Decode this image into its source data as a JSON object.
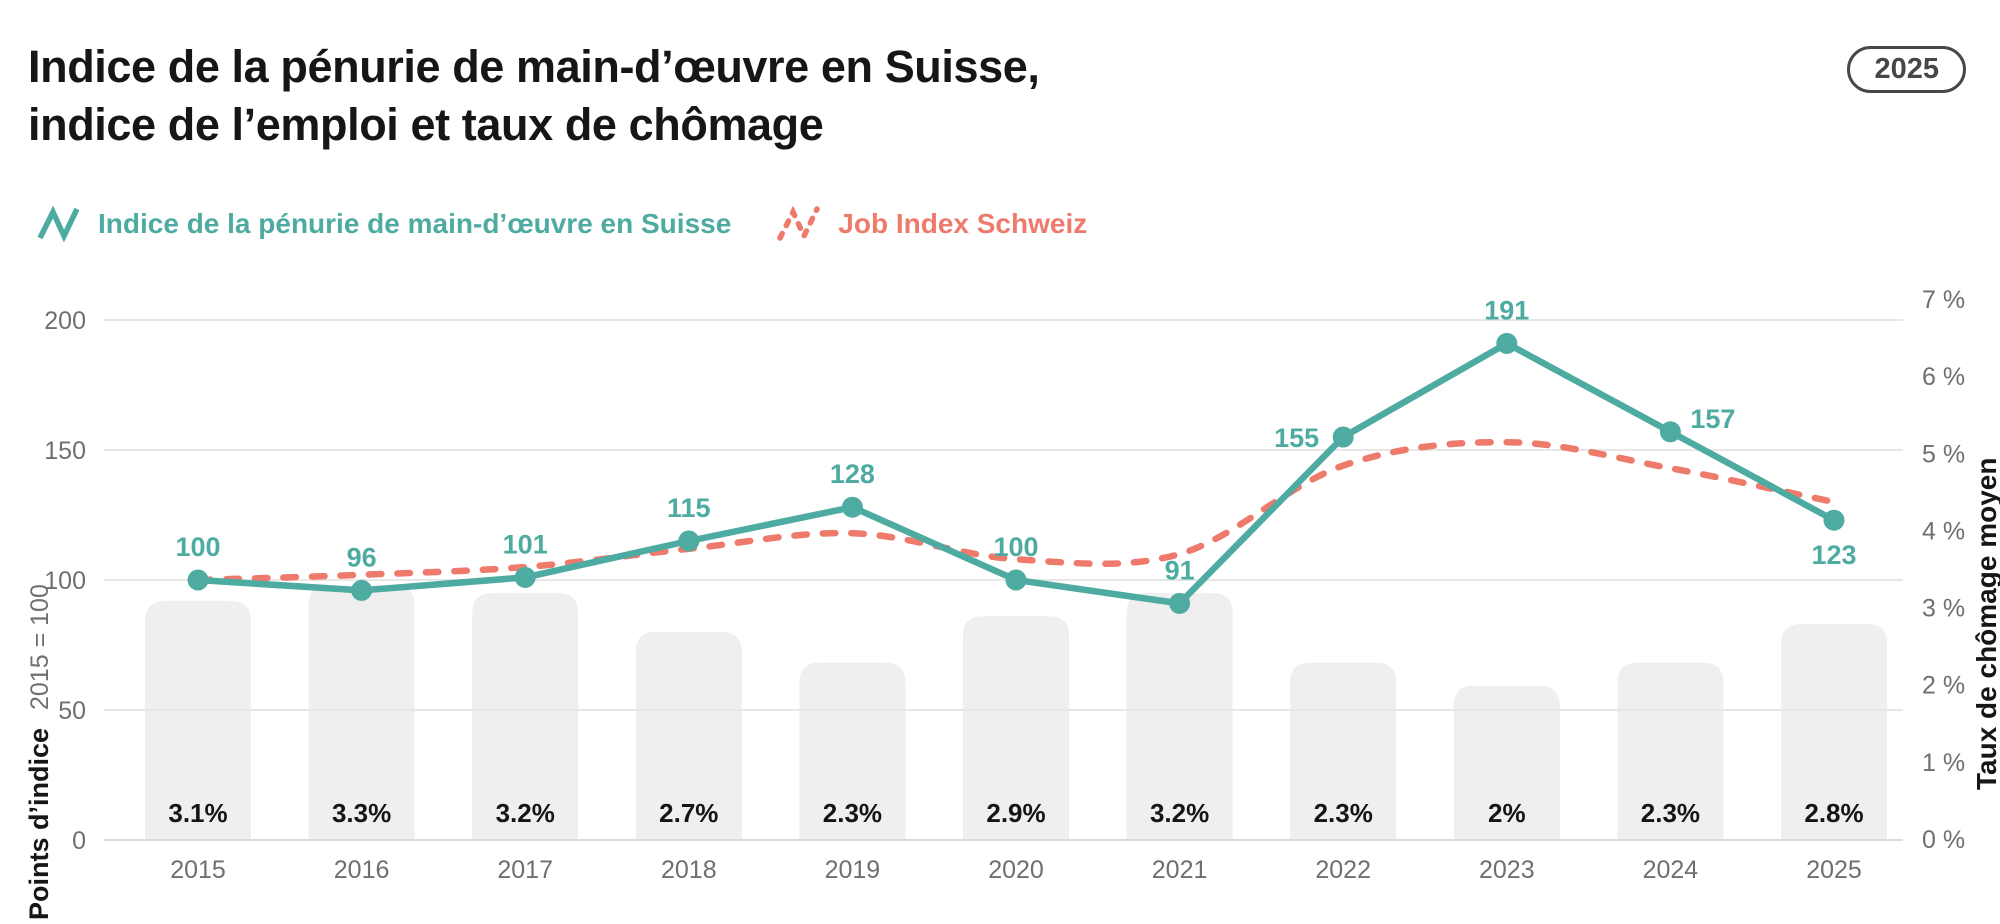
{
  "header": {
    "title_line1": "Indice de la pénurie de main-d’œuvre en Suisse,",
    "title_line2": "indice de l’emploi et taux de chômage",
    "year_badge": "2025"
  },
  "legend": [
    {
      "label": "Indice de la pénurie de main-d’œuvre en Suisse",
      "color": "#4EABA1",
      "style": "solid",
      "icon": "zigzag-line-icon"
    },
    {
      "label": "Job Index Schweiz",
      "color": "#EE7A6C",
      "style": "dashed",
      "icon": "zigzag-dashed-line-icon"
    }
  ],
  "chart_data": {
    "type": "combo",
    "categories": [
      "2015",
      "2016",
      "2017",
      "2018",
      "2019",
      "2020",
      "2021",
      "2022",
      "2023",
      "2024",
      "2025"
    ],
    "series": [
      {
        "name": "Indice de la pénurie de main-d’œuvre en Suisse",
        "type": "line",
        "style": "solid",
        "axis": "left",
        "color": "#4EABA1",
        "values": [
          100,
          96,
          101,
          115,
          128,
          100,
          91,
          155,
          191,
          157,
          123
        ],
        "point_labels": [
          "100",
          "96",
          "101",
          "115",
          "128",
          "100",
          "91",
          "155",
          "191",
          "157",
          "123"
        ],
        "label_positions": [
          "above",
          "above",
          "above",
          "above",
          "above",
          "above",
          "above",
          "left",
          "above",
          "above-right",
          "below"
        ]
      },
      {
        "name": "Job Index Schweiz",
        "type": "line",
        "style": "dashed",
        "smooth": true,
        "axis": "left",
        "color": "#EE7A6C",
        "values": [
          100,
          102,
          105,
          112,
          118,
          108,
          110,
          144,
          153,
          143,
          130
        ]
      },
      {
        "name": "Taux de chômage moyen",
        "type": "bar",
        "axis": "right",
        "color": "#EFEFEF",
        "values": [
          3.1,
          3.3,
          3.2,
          2.7,
          2.3,
          2.9,
          3.2,
          2.3,
          2,
          2.3,
          2.8
        ],
        "bar_labels": [
          "3.1%",
          "3.3%",
          "3.2%",
          "2.7%",
          "2.3%",
          "2.9%",
          "3.2%",
          "2.3%",
          "2%",
          "2.3%",
          "2.8%"
        ]
      }
    ],
    "left_axis": {
      "title": "Points d’indice",
      "subtitle": "2015 = 100",
      "ticks": [
        0,
        50,
        100,
        150,
        200
      ],
      "max": 200
    },
    "right_axis": {
      "title": "Taux de chômage moyen",
      "tick_labels": [
        "0 %",
        "1 %",
        "2 %",
        "3 %",
        "4 %",
        "5 %",
        "6 %",
        "7 %"
      ],
      "max": 7
    },
    "grid": true,
    "legend_position": "top"
  },
  "style": {
    "grid_color": "#E7E7E7",
    "baseline_color": "#DBDBDB",
    "tick_color": "#6F6F6F",
    "text_color": "#161616",
    "bar_label_color": "#151515"
  }
}
